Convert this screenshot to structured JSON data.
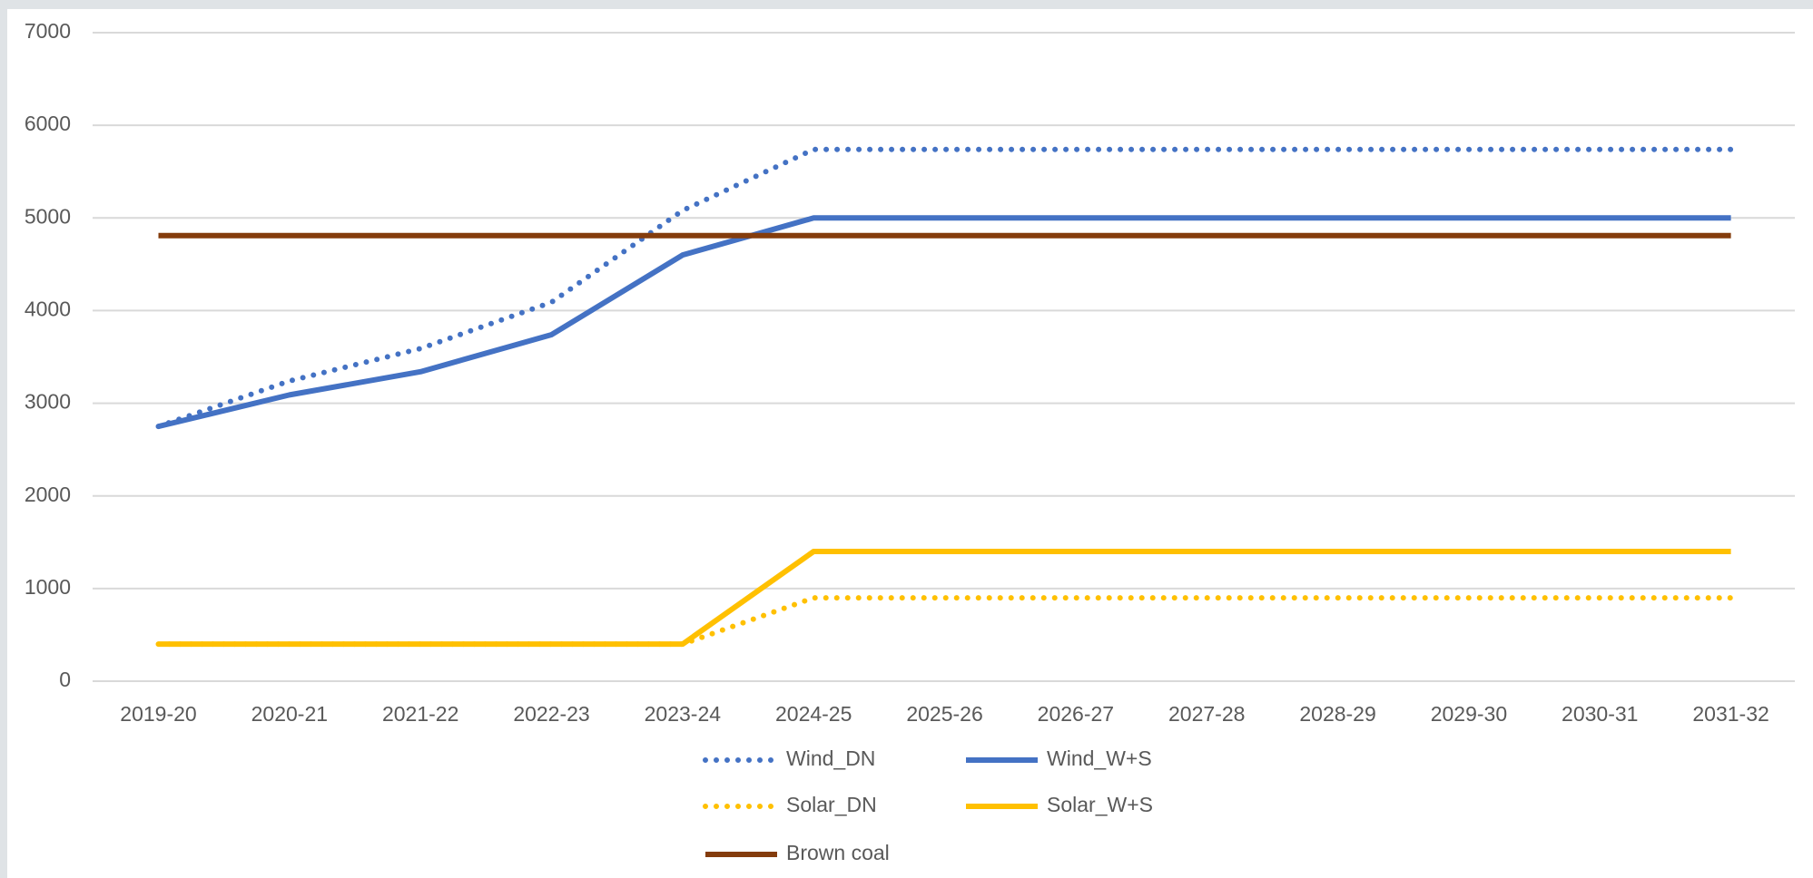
{
  "chart_data": {
    "type": "line",
    "categories": [
      "2019-20",
      "2020-21",
      "2021-22",
      "2022-23",
      "2023-24",
      "2024-25",
      "2025-26",
      "2026-27",
      "2027-28",
      "2028-29",
      "2029-30",
      "2030-31",
      "2031-32"
    ],
    "series": [
      {
        "name": "Wind_DN",
        "color": "#4472c4",
        "style": "dotted",
        "values": [
          2750,
          3240,
          3590,
          4090,
          5080,
          5740,
          5740,
          5740,
          5740,
          5740,
          5740,
          5740,
          5740
        ]
      },
      {
        "name": "Wind_W+S",
        "color": "#4472c4",
        "style": "solid",
        "values": [
          2750,
          3090,
          3340,
          3740,
          4600,
          5000,
          5000,
          5000,
          5000,
          5000,
          5000,
          5000,
          5000
        ]
      },
      {
        "name": "Solar_DN",
        "color": "#ffc000",
        "style": "dotted",
        "values": [
          400,
          400,
          400,
          400,
          400,
          900,
          900,
          900,
          900,
          900,
          900,
          900,
          900
        ]
      },
      {
        "name": "Solar_W+S",
        "color": "#ffc000",
        "style": "solid",
        "values": [
          400,
          400,
          400,
          400,
          400,
          1400,
          1400,
          1400,
          1400,
          1400,
          1400,
          1400,
          1400
        ]
      },
      {
        "name": "Brown coal",
        "color": "#843c0c",
        "style": "solid",
        "values": [
          4810,
          4810,
          4810,
          4810,
          4810,
          4810,
          4810,
          4810,
          4810,
          4810,
          4810,
          4810,
          4810
        ]
      }
    ],
    "ylim": [
      0,
      7000
    ],
    "yticks": [
      0,
      1000,
      2000,
      3000,
      4000,
      5000,
      6000,
      7000
    ],
    "grid": true,
    "legend": "bottom"
  }
}
